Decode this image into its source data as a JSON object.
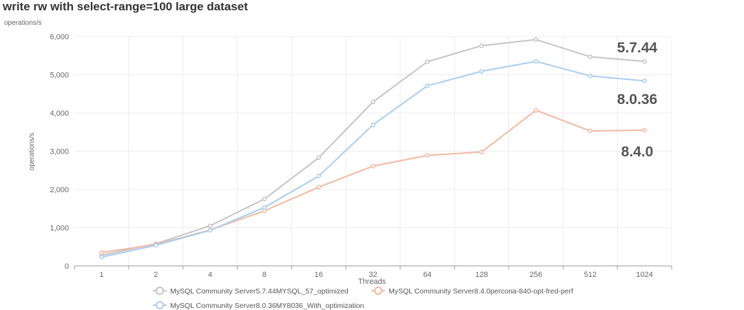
{
  "chart_data": {
    "type": "line",
    "title": "write rw with select-range=100 large dataset",
    "unit_label": "operations/s",
    "xlabel": "Threads",
    "ylabel": "operations/s",
    "categories": [
      "1",
      "2",
      "4",
      "8",
      "16",
      "32",
      "64",
      "128",
      "256",
      "512",
      "1024"
    ],
    "ylim": [
      0,
      6000
    ],
    "yticks": [
      0,
      1000,
      2000,
      3000,
      4000,
      5000,
      6000
    ],
    "ytick_labels": [
      "0",
      "1,000",
      "2,000",
      "3,000",
      "4,000",
      "5,000",
      "6,000"
    ],
    "grid": true,
    "legend_position": "bottom",
    "series": [
      {
        "name": "MySQL Community Server5.7.44MYSQL_57_optimized",
        "color": "#c4c4c4",
        "values": [
          280,
          580,
          1050,
          1750,
          2830,
          4290,
          5340,
          5760,
          5920,
          5470,
          5350
        ]
      },
      {
        "name": "MySQL Community Server8.4.0percona-840-opt-fred-perf",
        "color": "#f2b8a0",
        "values": [
          350,
          560,
          940,
          1440,
          2060,
          2610,
          2890,
          2980,
          4070,
          3530,
          3550
        ]
      },
      {
        "name": "MySQL Community Server8.0.36MY8036_With_optimization",
        "color": "#a8cdf0",
        "values": [
          230,
          540,
          930,
          1530,
          2350,
          3690,
          4710,
          5090,
          5350,
          4970,
          4840
        ]
      }
    ],
    "annotations": [
      {
        "text": "5.7.44",
        "series": 0
      },
      {
        "text": "8.0.36",
        "series": 2
      },
      {
        "text": "8.4.0",
        "series": 1
      }
    ]
  }
}
